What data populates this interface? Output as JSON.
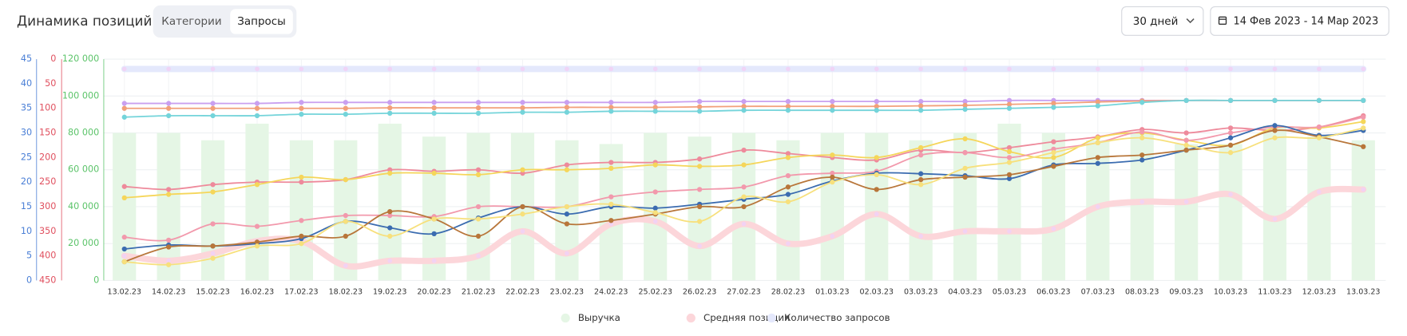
{
  "header": {
    "title": "Динамика позиций",
    "tabs": [
      {
        "label": "Категории"
      },
      {
        "label": "Запросы",
        "active": true
      }
    ],
    "period": "30 дней",
    "date_range": "14 Фев 2023  - 14 Мар 2023"
  },
  "chart_data": {
    "type": "line",
    "grid": true,
    "categories": [
      "13.02.23",
      "14.02.23",
      "15.02.23",
      "16.02.23",
      "17.02.23",
      "18.02.23",
      "19.02.23",
      "20.02.23",
      "21.02.23",
      "22.02.23",
      "23.02.23",
      "24.02.23",
      "25.02.23",
      "26.02.23",
      "27.02.23",
      "28.02.23",
      "01.03.23",
      "02.03.23",
      "03.03.23",
      "04.03.23",
      "05.03.23",
      "06.03.23",
      "07.03.23",
      "08.03.23",
      "09.03.23",
      "10.03.23",
      "11.03.23",
      "12.03.23",
      "13.03.23"
    ],
    "ylim": [
      0,
      120000
    ],
    "yticks": [
      0,
      {
        "value": 20000,
        "label": "20 000"
      },
      {
        "value": 40000,
        "label": "40 000"
      },
      {
        "value": 60000,
        "label": "60 000"
      },
      {
        "value": 80000,
        "label": "80 000"
      },
      {
        "value": 100000,
        "label": "100 000"
      },
      {
        "value": 120000,
        "label": "120 000"
      }
    ],
    "ycolor": "#5cc46a",
    "y2lim": [
      450,
      0
    ],
    "y2ticks": [
      0,
      50,
      100,
      150,
      200,
      250,
      300,
      350,
      400,
      450
    ],
    "y2color": "#e0505f",
    "y3lim": [
      0,
      45
    ],
    "y3ticks": [
      0,
      5,
      10,
      15,
      20,
      25,
      30,
      35,
      40,
      45
    ],
    "y3color": "#4a7fd6",
    "series": [
      {
        "name": "Выручка",
        "type": "bar",
        "color": "#e5f6e5",
        "values": [
          80000,
          80000,
          76000,
          85000,
          76000,
          76000,
          85000,
          78000,
          80000,
          80000,
          76000,
          74000,
          80000,
          78000,
          80000,
          76000,
          80000,
          80000,
          76000,
          80000,
          85000,
          80000,
          76000,
          80000,
          74000,
          74000,
          84000,
          78000,
          76000
        ]
      },
      {
        "name": "Средняя позиция",
        "color": "#fcd6da",
        "width": 7,
        "axis": "y2",
        "values": [
          400,
          410,
          395,
          370,
          370,
          420,
          410,
          410,
          400,
          350,
          395,
          335,
          330,
          380,
          335,
          375,
          360,
          315,
          360,
          350,
          350,
          345,
          300,
          290,
          290,
          275,
          325,
          270,
          265
        ]
      },
      {
        "name": "Количество запросов",
        "color": "#e4e8fc",
        "width": 7,
        "axis": "y3",
        "values": [
          43,
          43,
          43,
          43,
          43,
          43,
          43,
          43,
          43,
          43,
          43,
          43,
          43,
          43,
          43,
          43,
          43,
          43,
          43,
          43,
          43,
          43,
          43,
          43,
          43,
          43,
          43,
          43,
          43
        ]
      },
      {
        "color": "#c9a0f0",
        "axis": "y2",
        "values": [
          90,
          90,
          90,
          90,
          88,
          88,
          88,
          88,
          88,
          88,
          88,
          88,
          88,
          86,
          86,
          86,
          86,
          86,
          86,
          86,
          84,
          84,
          84,
          84,
          84,
          84,
          84,
          84,
          84
        ]
      },
      {
        "color": "#f2a07a",
        "axis": "y2",
        "values": [
          100,
          100,
          100,
          100,
          100,
          100,
          99,
          99,
          99,
          99,
          98,
          98,
          98,
          97,
          96,
          96,
          96,
          96,
          95,
          94,
          92,
          90,
          87,
          85,
          84,
          84,
          84,
          84,
          84
        ]
      },
      {
        "color": "#74d4da",
        "axis": "y2",
        "values": [
          118,
          115,
          115,
          115,
          112,
          112,
          110,
          110,
          110,
          108,
          108,
          106,
          106,
          106,
          104,
          104,
          104,
          104,
          104,
          102,
          100,
          98,
          95,
          88,
          84,
          84,
          84,
          84,
          84
        ]
      },
      {
        "color": "#ee8a9b",
        "axis": "y2",
        "values": [
          259,
          265,
          255,
          250,
          250,
          245,
          225,
          228,
          225,
          232,
          215,
          210,
          210,
          203,
          185,
          192,
          200,
          205,
          185,
          190,
          180,
          168,
          158,
          143,
          150,
          140,
          145,
          138,
          115
        ]
      },
      {
        "color": "#f5d65a",
        "axis": "y2",
        "values": [
          282,
          275,
          270,
          255,
          240,
          245,
          232,
          232,
          235,
          225,
          225,
          222,
          215,
          218,
          215,
          200,
          195,
          200,
          180,
          162,
          188,
          200,
          160,
          150,
          165,
          175,
          140,
          140,
          127
        ]
      },
      {
        "color": "#f299ac",
        "axis": "y2",
        "values": [
          362,
          368,
          335,
          340,
          328,
          318,
          318,
          320,
          300,
          300,
          300,
          280,
          270,
          265,
          260,
          237,
          232,
          228,
          195,
          190,
          200,
          183,
          170,
          148,
          165,
          150,
          138,
          138,
          118
        ]
      },
      {
        "color": "#3b6cb0",
        "axis": "y2",
        "values": [
          386,
          378,
          380,
          375,
          365,
          330,
          343,
          355,
          323,
          300,
          315,
          300,
          303,
          295,
          285,
          275,
          248,
          232,
          233,
          237,
          243,
          215,
          212,
          205,
          185,
          160,
          135,
          155,
          145
        ]
      },
      {
        "color": "#b8763a",
        "axis": "y2",
        "values": [
          412,
          382,
          380,
          372,
          360,
          360,
          310,
          325,
          360,
          300,
          335,
          328,
          315,
          300,
          300,
          260,
          240,
          265,
          245,
          240,
          235,
          218,
          200,
          195,
          185,
          175,
          145,
          158,
          178
        ]
      },
      {
        "color": "#f7e07c",
        "axis": "y2",
        "values": [
          412,
          418,
          405,
          380,
          375,
          330,
          360,
          325,
          325,
          315,
          300,
          295,
          312,
          330,
          280,
          290,
          250,
          235,
          255,
          222,
          210,
          190,
          170,
          160,
          175,
          190,
          160,
          160,
          140
        ]
      }
    ]
  }
}
